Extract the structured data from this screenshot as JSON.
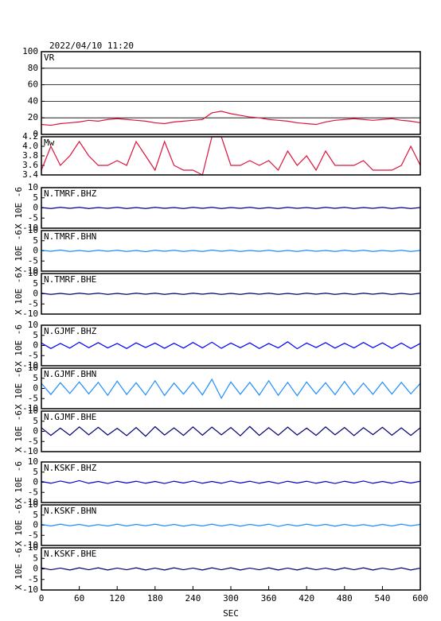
{
  "chart_data": [
    {
      "type": "line",
      "title": "2022/04/10 11:20",
      "xlim": [
        0,
        600
      ],
      "ylim": [
        0,
        100
      ],
      "yticks": [
        0,
        20,
        40,
        60,
        80,
        100
      ],
      "grid": true,
      "x": [
        0,
        15,
        30,
        45,
        60,
        75,
        90,
        105,
        120,
        135,
        150,
        165,
        180,
        195,
        210,
        225,
        240,
        255,
        270,
        285,
        300,
        315,
        330,
        345,
        360,
        375,
        390,
        405,
        420,
        435,
        450,
        465,
        480,
        495,
        510,
        525,
        540,
        555,
        570,
        585,
        600
      ],
      "series": [
        {
          "name": "VR",
          "color": "#dc143c",
          "values": [
            12,
            11,
            13,
            14,
            15,
            17,
            16,
            18,
            19,
            18,
            17,
            16,
            14,
            13,
            15,
            16,
            17,
            18,
            26,
            28,
            25,
            23,
            21,
            20,
            18,
            17,
            16,
            14,
            13,
            12,
            15,
            17,
            18,
            19,
            18,
            17,
            18,
            19,
            17,
            16,
            14
          ]
        }
      ]
    },
    {
      "type": "line",
      "xlim": [
        0,
        600
      ],
      "ylim": [
        3.4,
        4.2
      ],
      "yticks": [
        3.4,
        3.6,
        3.8,
        {
          "value": 4,
          "label": "4.0"
        },
        4.2
      ],
      "grid": false,
      "x": [
        0,
        15,
        30,
        45,
        60,
        75,
        90,
        105,
        120,
        135,
        150,
        165,
        180,
        195,
        210,
        225,
        240,
        255,
        270,
        285,
        300,
        315,
        330,
        345,
        360,
        375,
        390,
        405,
        420,
        435,
        450,
        465,
        480,
        495,
        510,
        525,
        540,
        555,
        570,
        585,
        600
      ],
      "series": [
        {
          "name": "Mw",
          "color": "#dc143c",
          "values": [
            3.5,
            4.0,
            3.6,
            3.8,
            4.1,
            3.8,
            3.6,
            3.6,
            3.7,
            3.6,
            4.1,
            3.8,
            3.5,
            4.1,
            3.6,
            3.5,
            3.5,
            3.4,
            4.2,
            4.2,
            3.6,
            3.6,
            3.7,
            3.6,
            3.7,
            3.5,
            3.9,
            3.6,
            3.8,
            3.5,
            3.9,
            3.6,
            3.6,
            3.6,
            3.7,
            3.5,
            3.5,
            3.5,
            3.6,
            4.0,
            3.6
          ]
        }
      ]
    },
    {
      "type": "line",
      "xlim": [
        0,
        600
      ],
      "ylim": [
        -10,
        10
      ],
      "yticks": [
        -10,
        -5,
        0,
        5,
        10
      ],
      "ylabel": "X 10E -6",
      "x": [
        0,
        15,
        30,
        45,
        60,
        75,
        90,
        105,
        120,
        135,
        150,
        165,
        180,
        195,
        210,
        225,
        240,
        255,
        270,
        285,
        300,
        315,
        330,
        345,
        360,
        375,
        390,
        405,
        420,
        435,
        450,
        465,
        480,
        495,
        510,
        525,
        540,
        555,
        570,
        585,
        600
      ],
      "series": [
        {
          "name": "N.TMRF.BHZ",
          "color": "#000090",
          "values": [
            0.2,
            -0.3,
            0.3,
            -0.2,
            0.3,
            -0.3,
            0.2,
            -0.2,
            0.3,
            -0.3,
            0.2,
            -0.3,
            0.3,
            -0.2,
            0.2,
            -0.3,
            0.3,
            -0.2,
            0.3,
            -0.3,
            0.2,
            -0.2,
            0.3,
            -0.3,
            0.2,
            -0.3,
            0.3,
            -0.2,
            0.2,
            -0.3,
            0.3,
            -0.2,
            0.3,
            -0.3,
            0.2,
            -0.2,
            0.3,
            -0.3,
            0.2,
            -0.3,
            0.2
          ]
        }
      ]
    },
    {
      "type": "line",
      "xlim": [
        0,
        600
      ],
      "ylim": [
        -10,
        10
      ],
      "yticks": [
        -10,
        -5,
        0,
        5,
        10
      ],
      "ylabel": "X 10E -6",
      "x": [
        0,
        15,
        30,
        45,
        60,
        75,
        90,
        105,
        120,
        135,
        150,
        165,
        180,
        195,
        210,
        225,
        240,
        255,
        270,
        285,
        300,
        315,
        330,
        345,
        360,
        375,
        390,
        405,
        420,
        435,
        450,
        465,
        480,
        495,
        510,
        525,
        540,
        555,
        570,
        585,
        600
      ],
      "series": [
        {
          "name": "N.TMRF.BHN",
          "color": "#1e8cff",
          "values": [
            0.3,
            -0.2,
            0.4,
            -0.3,
            0.2,
            -0.3,
            0.3,
            -0.2,
            0.3,
            -0.3,
            0.2,
            -0.4,
            0.3,
            -0.2,
            0.3,
            -0.3,
            0.2,
            -0.3,
            0.4,
            -0.2,
            0.3,
            -0.3,
            0.2,
            -0.2,
            0.3,
            -0.3,
            0.2,
            -0.3,
            0.3,
            -0.2,
            0.2,
            -0.3,
            0.3,
            -0.2,
            0.3,
            -0.3,
            0.2,
            -0.2,
            0.3,
            -0.3,
            0.2
          ]
        }
      ]
    },
    {
      "type": "line",
      "xlim": [
        0,
        600
      ],
      "ylim": [
        -10,
        10
      ],
      "yticks": [
        -10,
        -5,
        0,
        5,
        10
      ],
      "ylabel": "X 10E -6",
      "x": [
        0,
        15,
        30,
        45,
        60,
        75,
        90,
        105,
        120,
        135,
        150,
        165,
        180,
        195,
        210,
        225,
        240,
        255,
        270,
        285,
        300,
        315,
        330,
        345,
        360,
        375,
        390,
        405,
        420,
        435,
        450,
        465,
        480,
        495,
        510,
        525,
        540,
        555,
        570,
        585,
        600
      ],
      "series": [
        {
          "name": "N.TMRF.BHE",
          "color": "#000070",
          "values": [
            0.3,
            -0.3,
            0.2,
            -0.3,
            0.3,
            -0.2,
            0.3,
            -0.3,
            0.2,
            -0.3,
            0.3,
            -0.2,
            0.3,
            -0.3,
            0.2,
            -0.3,
            0.3,
            -0.2,
            0.3,
            -0.3,
            0.2,
            -0.3,
            0.3,
            -0.2,
            0.3,
            -0.3,
            0.2,
            -0.3,
            0.3,
            -0.2,
            0.3,
            -0.3,
            0.2,
            -0.3,
            0.3,
            -0.2,
            0.3,
            -0.3,
            0.2,
            -0.3,
            0.3
          ]
        }
      ]
    },
    {
      "type": "line",
      "xlim": [
        0,
        600
      ],
      "ylim": [
        -10,
        10
      ],
      "yticks": [
        -10,
        -5,
        0,
        5,
        10
      ],
      "ylabel": "X 10E -6",
      "x": [
        0,
        15,
        30,
        45,
        60,
        75,
        90,
        105,
        120,
        135,
        150,
        165,
        180,
        195,
        210,
        225,
        240,
        255,
        270,
        285,
        300,
        315,
        330,
        345,
        360,
        375,
        390,
        405,
        420,
        435,
        450,
        465,
        480,
        495,
        510,
        525,
        540,
        555,
        570,
        585,
        600
      ],
      "series": [
        {
          "name": "N.GJMF.BHZ",
          "color": "#0000ff",
          "values": [
            1.2,
            -1.5,
            1.0,
            -1.3,
            1.6,
            -1.1,
            1.4,
            -1.2,
            1.0,
            -1.5,
            1.3,
            -1.0,
            1.2,
            -1.4,
            1.1,
            -1.3,
            1.5,
            -1.2,
            1.6,
            -1.4,
            1.2,
            -1.1,
            1.3,
            -1.5,
            1.0,
            -1.2,
            1.8,
            -1.6,
            1.2,
            -1.0,
            1.4,
            -1.3,
            1.1,
            -1.2,
            1.5,
            -1.1,
            1.3,
            -1.4,
            1.2,
            -1.5,
            1.0
          ]
        }
      ]
    },
    {
      "type": "line",
      "xlim": [
        0,
        600
      ],
      "ylim": [
        -10,
        10
      ],
      "yticks": [
        -10,
        -5,
        0,
        5,
        10
      ],
      "ylabel": "X 10E -6",
      "x": [
        0,
        15,
        30,
        45,
        60,
        75,
        90,
        105,
        120,
        135,
        150,
        165,
        180,
        195,
        210,
        225,
        240,
        255,
        270,
        285,
        300,
        315,
        330,
        345,
        360,
        375,
        390,
        405,
        420,
        435,
        450,
        465,
        480,
        495,
        510,
        525,
        540,
        555,
        570,
        585,
        600
      ],
      "series": [
        {
          "name": "N.GJMF.BHN",
          "color": "#1e8cff",
          "values": [
            2.5,
            -3.0,
            2.8,
            -2.5,
            3.2,
            -2.7,
            3.0,
            -3.4,
            3.6,
            -3.0,
            2.8,
            -3.2,
            3.8,
            -3.5,
            2.6,
            -2.8,
            3.0,
            -3.2,
            4.5,
            -4.8,
            3.2,
            -2.9,
            3.0,
            -3.3,
            3.8,
            -3.4,
            3.0,
            -3.6,
            3.2,
            -2.7,
            2.8,
            -3.1,
            3.4,
            -3.0,
            2.6,
            -2.9,
            3.1,
            -2.8,
            3.0,
            -2.7,
            2.5
          ]
        }
      ]
    },
    {
      "type": "line",
      "xlim": [
        0,
        600
      ],
      "ylim": [
        -10,
        10
      ],
      "yticks": [
        -10,
        -5,
        0,
        5,
        10
      ],
      "ylabel": "X 10E -6",
      "x": [
        0,
        15,
        30,
        45,
        60,
        75,
        90,
        105,
        120,
        135,
        150,
        165,
        180,
        195,
        210,
        225,
        240,
        255,
        270,
        285,
        300,
        315,
        330,
        345,
        360,
        375,
        390,
        405,
        420,
        435,
        450,
        465,
        480,
        495,
        510,
        525,
        540,
        555,
        570,
        585,
        600
      ],
      "series": [
        {
          "name": "N.GJMF.BHE",
          "color": "#000070",
          "values": [
            1.8,
            -2.0,
            1.6,
            -1.9,
            2.2,
            -1.7,
            2.0,
            -1.8,
            1.5,
            -2.1,
            1.9,
            -2.4,
            2.3,
            -1.8,
            1.7,
            -2.0,
            2.2,
            -1.9,
            2.1,
            -1.7,
            1.9,
            -2.2,
            2.4,
            -2.0,
            1.8,
            -1.9,
            2.1,
            -1.8,
            1.6,
            -2.0,
            2.2,
            -1.7,
            1.9,
            -2.1,
            1.8,
            -1.6,
            2.0,
            -1.9,
            1.7,
            -2.0,
            1.8
          ]
        }
      ]
    },
    {
      "type": "line",
      "xlim": [
        0,
        600
      ],
      "ylim": [
        -10,
        10
      ],
      "yticks": [
        -10,
        -5,
        0,
        5,
        10
      ],
      "ylabel": "X 10E -6",
      "x": [
        0,
        15,
        30,
        45,
        60,
        75,
        90,
        105,
        120,
        135,
        150,
        165,
        180,
        195,
        210,
        225,
        240,
        255,
        270,
        285,
        300,
        315,
        330,
        345,
        360,
        375,
        390,
        405,
        420,
        435,
        450,
        465,
        480,
        495,
        510,
        525,
        540,
        555,
        570,
        585,
        600
      ],
      "series": [
        {
          "name": "N.KSKF.BHZ",
          "color": "#0000c8",
          "values": [
            0.4,
            -0.5,
            0.6,
            -0.4,
            0.8,
            -0.5,
            0.4,
            -0.6,
            0.5,
            -0.4,
            0.5,
            -0.5,
            0.4,
            -0.6,
            0.5,
            -0.4,
            0.6,
            -0.5,
            0.4,
            -0.5,
            0.6,
            -0.4,
            0.5,
            -0.5,
            0.4,
            -0.6,
            0.5,
            -0.4,
            0.5,
            -0.5,
            0.4,
            -0.6,
            0.5,
            -0.4,
            0.6,
            -0.5,
            0.4,
            -0.5,
            0.5,
            -0.4,
            0.5
          ]
        }
      ]
    },
    {
      "type": "line",
      "xlim": [
        0,
        600
      ],
      "ylim": [
        -10,
        10
      ],
      "yticks": [
        -10,
        -5,
        0,
        5,
        10
      ],
      "ylabel": "X 10E -6",
      "x": [
        0,
        15,
        30,
        45,
        60,
        75,
        90,
        105,
        120,
        135,
        150,
        165,
        180,
        195,
        210,
        225,
        240,
        255,
        270,
        285,
        300,
        315,
        330,
        345,
        360,
        375,
        390,
        405,
        420,
        435,
        450,
        465,
        480,
        495,
        510,
        525,
        540,
        555,
        570,
        585,
        600
      ],
      "series": [
        {
          "name": "N.KSKF.BHN",
          "color": "#1e8cff",
          "values": [
            0.4,
            -0.4,
            0.5,
            -0.3,
            0.4,
            -0.5,
            0.3,
            -0.4,
            0.5,
            -0.4,
            0.4,
            -0.3,
            0.5,
            -0.4,
            0.4,
            -0.5,
            0.3,
            -0.4,
            0.5,
            -0.4,
            0.4,
            -0.5,
            0.4,
            -0.3,
            0.5,
            -0.6,
            0.4,
            -0.4,
            0.5,
            -0.3,
            0.4,
            -0.5,
            0.4,
            -0.4,
            0.3,
            -0.5,
            0.4,
            -0.4,
            0.5,
            -0.3,
            0.4
          ]
        }
      ]
    },
    {
      "type": "line",
      "xlim": [
        0,
        600
      ],
      "ylim": [
        -10,
        10
      ],
      "yticks": [
        -10,
        -5,
        0,
        5,
        10
      ],
      "ylabel": "X 10E -6",
      "xlabel": "SEC",
      "xticks": [
        0,
        60,
        120,
        180,
        240,
        300,
        360,
        420,
        480,
        540,
        600
      ],
      "x": [
        0,
        15,
        30,
        45,
        60,
        75,
        90,
        105,
        120,
        135,
        150,
        165,
        180,
        195,
        210,
        225,
        240,
        255,
        270,
        285,
        300,
        315,
        330,
        345,
        360,
        375,
        390,
        405,
        420,
        435,
        450,
        465,
        480,
        495,
        510,
        525,
        540,
        555,
        570,
        585,
        600
      ],
      "series": [
        {
          "name": "N.KSKF.BHE",
          "color": "#000070",
          "values": [
            0.5,
            -0.4,
            0.4,
            -0.5,
            0.5,
            -0.4,
            0.5,
            -0.5,
            0.4,
            -0.4,
            0.5,
            -0.5,
            0.4,
            -0.5,
            0.5,
            -0.4,
            0.4,
            -0.5,
            0.5,
            -0.4,
            0.5,
            -0.5,
            0.4,
            -0.4,
            0.5,
            -0.5,
            0.4,
            -0.5,
            0.5,
            -0.4,
            0.4,
            -0.5,
            0.5,
            -0.4,
            0.5,
            -0.5,
            0.4,
            -0.4,
            0.5,
            -0.5,
            0.4
          ]
        }
      ]
    }
  ]
}
